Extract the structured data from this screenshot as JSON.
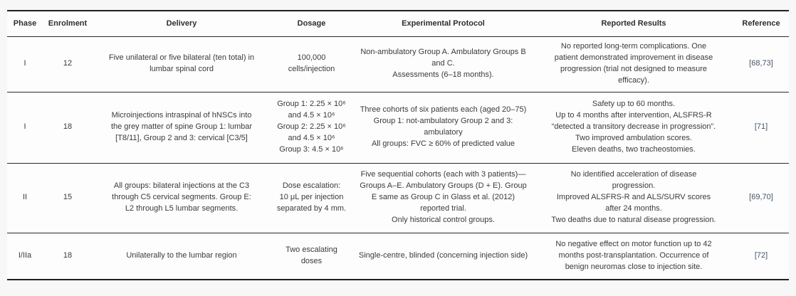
{
  "table": {
    "columns": [
      {
        "label": "Phase"
      },
      {
        "label": "Enrolment"
      },
      {
        "label": "Delivery"
      },
      {
        "label": "Dosage"
      },
      {
        "label": "Experimental Protocol"
      },
      {
        "label": "Reported Results"
      },
      {
        "label": "Reference"
      }
    ],
    "rows": [
      {
        "phase": "I",
        "enrolment": "12",
        "delivery": "Five unilateral or five bilateral (ten total) in\nlumbar spinal cord",
        "dosage": "100,000\ncells/injection",
        "protocol": "Non-ambulatory Group A. Ambulatory Groups B\nand C.\nAssessments (6–18 months).",
        "results": "No reported long-term complications. One\npatient demonstrated improvement in disease\nprogression (trial not designed to measure\nefficacy).",
        "reference": "[68,73]"
      },
      {
        "phase": "I",
        "enrolment": "18",
        "delivery": "Microinjections intraspinal of hNSCs into\nthe grey matter of spine Group 1: lumbar\n[T8/11], Group 2 and 3: cervical [C3/5]",
        "dosage": "Group 1: 2.25 × 10⁶\nand 4.5 × 10⁶\nGroup 2: 2.25 × 10⁶\nand 4.5 × 10⁶\nGroup 3: 4.5 × 10⁶",
        "protocol": "Three cohorts of six patients each (aged 20–75)\nGroup 1: not-ambulatory Group 2 and 3:\nambulatory\nAll groups: FVC ≥ 60% of predicted value",
        "results": "Safety up to 60 months.\nUp to 4 months after intervention, ALSFRS-R\n“detected a transitory decrease in progression”.\nTwo improved ambulation scores.\nEleven deaths, two tracheostomies.",
        "reference": "[71]"
      },
      {
        "phase": "II",
        "enrolment": "15",
        "delivery": "All groups: bilateral injections at the C3\nthrough C5 cervical segments. Group E:\nL2 through L5 lumbar segments.",
        "dosage": "Dose escalation:\n10 μL per injection\nseparated by 4 mm.",
        "protocol": "Five sequential cohorts (each with 3 patients)—\nGroups A–E. Ambulatory Groups (D + E). Group\nE same as Group C in Glass et al. (2012)\nreported trial.\nOnly historical control groups.",
        "results": "No identified acceleration of disease\nprogression.\nImproved ALSFRS-R and ALS/SURV scores\nafter 24 months.\nTwo deaths due to natural disease progression.",
        "reference": "[69,70]"
      },
      {
        "phase": "I/IIa",
        "enrolment": "18",
        "delivery": "Unilaterally to the lumbar region",
        "dosage": "Two escalating\ndoses",
        "protocol": "Single-centre, blinded (concerning injection side)",
        "results": "No negative effect on motor function up to 42\nmonths post-transplantation. Occurrence of\nbenign neuromas close to injection site.",
        "reference": "[72]"
      }
    ]
  },
  "colors": {
    "page_background": "#f7f7f7",
    "table_background": "#fdfdfd",
    "text": "#3a3a3a",
    "rule": "#1f1f1f",
    "reference_link": "#44546a"
  }
}
